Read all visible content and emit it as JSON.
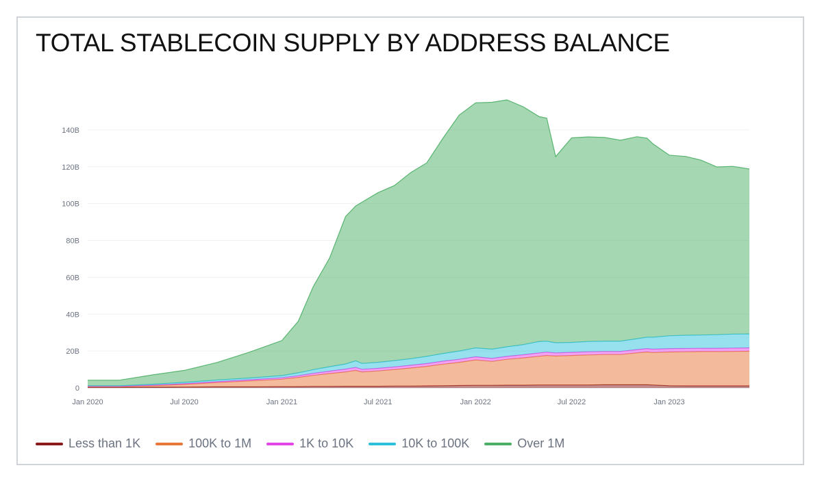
{
  "chart_data": {
    "type": "area",
    "stacked": true,
    "title": "TOTAL STABLECOIN SUPPLY BY ADDRESS BALANCE",
    "xlabel": "",
    "ylabel": "",
    "x_ticks": [
      "Jan 2020",
      "Jul 2020",
      "Jan 2021",
      "Jul 2021",
      "Jan 2022",
      "Jul 2022",
      "Jan 2023"
    ],
    "y_ticks": [
      "0",
      "20B",
      "40B",
      "60B",
      "80B",
      "100B",
      "120B",
      "140B"
    ],
    "ylim": [
      0,
      160
    ],
    "y_unit": "B",
    "grid": true,
    "legend_position": "bottom-left",
    "x": [
      "2020-01-01",
      "2020-03-01",
      "2020-05-01",
      "2020-07-01",
      "2020-09-01",
      "2020-11-01",
      "2021-01-01",
      "2021-02-01",
      "2021-03-01",
      "2021-04-01",
      "2021-05-01",
      "2021-05-20",
      "2021-06-01",
      "2021-07-01",
      "2021-08-01",
      "2021-09-01",
      "2021-10-01",
      "2021-11-01",
      "2021-12-01",
      "2022-01-01",
      "2022-02-01",
      "2022-03-01",
      "2022-04-01",
      "2022-05-01",
      "2022-05-15",
      "2022-06-01",
      "2022-07-01",
      "2022-08-01",
      "2022-09-01",
      "2022-10-01",
      "2022-11-01",
      "2022-11-20",
      "2022-12-01",
      "2023-01-01",
      "2023-02-01",
      "2023-03-01",
      "2023-04-01",
      "2023-05-01",
      "2023-06-01"
    ],
    "series": [
      {
        "name": "Less than 1K",
        "color": "#8b1a1a",
        "values": [
          0.3,
          0.3,
          0.4,
          0.5,
          0.6,
          0.6,
          0.7,
          0.7,
          0.8,
          0.8,
          0.9,
          0.9,
          0.9,
          0.9,
          1.0,
          1.0,
          1.1,
          1.2,
          1.3,
          1.4,
          1.4,
          1.5,
          1.5,
          1.6,
          1.6,
          1.6,
          1.6,
          1.6,
          1.7,
          1.7,
          1.7,
          1.7,
          1.6,
          1.2,
          1.1,
          1.1,
          1.1,
          1.1,
          1.1
        ]
      },
      {
        "name": "100K to 1M",
        "color": "#e8783a",
        "values": [
          0.4,
          0.4,
          0.8,
          1.4,
          2.3,
          3.2,
          4.0,
          5.0,
          6.0,
          7.0,
          7.8,
          8.6,
          7.8,
          8.3,
          9.0,
          9.8,
          10.6,
          11.7,
          12.6,
          13.8,
          13.0,
          14.0,
          14.8,
          15.6,
          16.0,
          15.7,
          16.0,
          16.3,
          16.4,
          16.4,
          17.3,
          17.8,
          17.6,
          18.3,
          18.5,
          18.6,
          18.6,
          18.7,
          18.8
        ]
      },
      {
        "name": "1K to 10K",
        "color": "#e445e6",
        "values": [
          0.2,
          0.2,
          0.3,
          0.4,
          0.5,
          0.6,
          0.8,
          0.9,
          1.1,
          1.3,
          1.5,
          1.6,
          1.4,
          1.4,
          1.4,
          1.5,
          1.5,
          1.6,
          1.6,
          1.7,
          1.6,
          1.6,
          1.7,
          1.8,
          1.8,
          1.7,
          1.7,
          1.7,
          1.7,
          1.7,
          1.8,
          1.8,
          1.8,
          1.8,
          1.8,
          1.8,
          1.8,
          1.8,
          1.8
        ]
      },
      {
        "name": "10K to 100K",
        "color": "#2fc1dc",
        "values": [
          0.3,
          0.3,
          0.5,
          0.7,
          0.9,
          1.0,
          1.2,
          1.6,
          2.0,
          2.4,
          2.8,
          3.6,
          3.2,
          3.3,
          3.4,
          3.6,
          3.9,
          4.2,
          4.5,
          4.8,
          5.0,
          5.2,
          5.5,
          6.2,
          6.0,
          5.5,
          5.4,
          5.6,
          5.6,
          5.6,
          5.9,
          6.2,
          6.5,
          7.0,
          7.2,
          7.2,
          7.4,
          7.6,
          7.6
        ]
      },
      {
        "name": "Over 1M",
        "color": "#4caf66",
        "values": [
          3.0,
          3.0,
          5.0,
          6.5,
          9.5,
          14.0,
          19.0,
          28.0,
          45.0,
          59.0,
          80.0,
          84.0,
          87.5,
          92.0,
          95.0,
          101.0,
          105.0,
          117.0,
          128.0,
          133.0,
          134.0,
          134.0,
          129.0,
          122.0,
          121.0,
          101.0,
          111.0,
          111.0,
          110.5,
          109.0,
          109.6,
          108.0,
          105.0,
          98.0,
          97.0,
          95.0,
          91.0,
          91.0,
          89.5
        ]
      }
    ]
  }
}
